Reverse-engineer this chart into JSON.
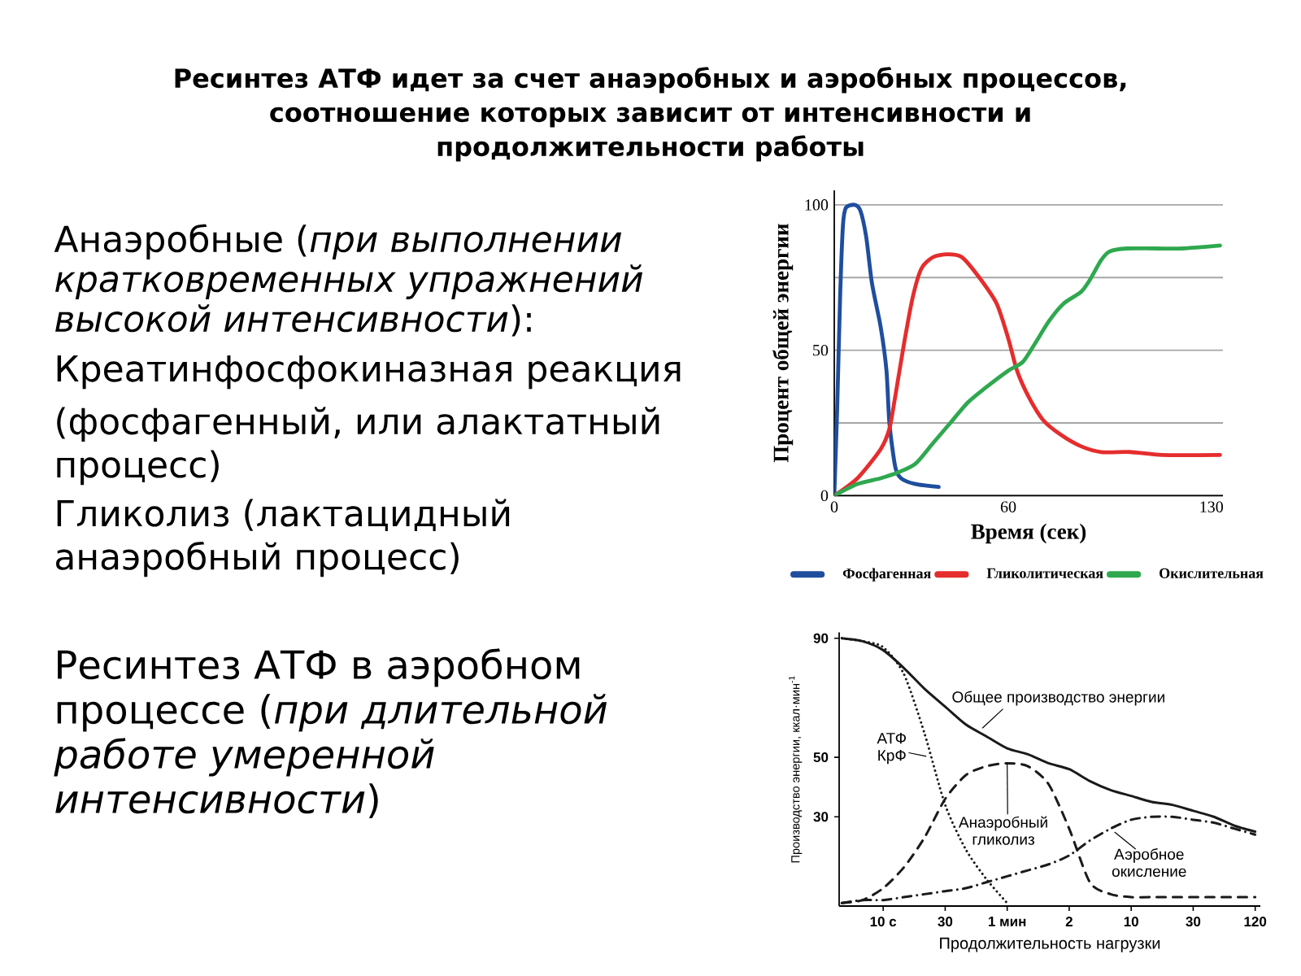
{
  "chart_data": [
    {
      "type": "other",
      "title": "Ресинтез АТФ идет за счет анаэробных и аэробных процессов, соотношение которых зависит от интенсивности и продолжительности работы",
      "annotations": [
        "Анаэробные (*при выполнении кратковременных упражнений высокой интенсивности*):",
        "Креатинфосфокиназная реакция",
        "(фосфагенный, или алактатный процесс)",
        "Гликолиз (лактацидный анаэробный процесс)",
        "Ресинтез АТФ в аэробном процессе (*при длительной работе умеренной интенсивности*)"
      ]
    },
    {
      "type": "line",
      "xlabel": "Время (сек)",
      "ylabel": "Процент общей энергии",
      "xlim": [
        0,
        134
      ],
      "ylim": [
        0,
        105
      ],
      "xticks": [
        0,
        60,
        130
      ],
      "yticks": [
        0,
        {
          "value": 25,
          "label": null
        },
        50,
        {
          "value": 75,
          "label": null
        },
        100
      ],
      "grid": "y",
      "legend": "bottom",
      "series": [
        {
          "name": "Фосфагенная",
          "color": "#1f4e9e",
          "x": [
            0,
            1,
            2,
            3,
            4,
            7,
            9,
            11,
            13,
            16,
            18,
            19,
            21,
            23,
            28,
            36
          ],
          "values": [
            0,
            30,
            68,
            93,
            99,
            100,
            98,
            89,
            73,
            58,
            43,
            25,
            10,
            6,
            4,
            3
          ]
        },
        {
          "name": "Гликолитическая",
          "color": "#e52d2d",
          "x": [
            0,
            8,
            16,
            19,
            21,
            24,
            27,
            30,
            34,
            39,
            44,
            50,
            56,
            60,
            63,
            67,
            72,
            78,
            85,
            92,
            102,
            113,
            133
          ],
          "values": [
            0,
            6,
            16,
            23,
            34,
            52,
            68,
            78,
            82,
            83,
            82,
            75,
            66,
            54,
            43,
            34,
            26,
            21,
            17,
            15,
            15,
            14,
            14
          ]
        },
        {
          "name": "Окислительная",
          "color": "#2fa84f",
          "x": [
            0,
            8,
            16,
            22,
            28,
            34,
            40,
            46,
            52,
            60,
            65,
            69,
            74,
            79,
            85,
            88,
            92,
            95,
            101,
            111,
            120,
            133
          ],
          "values": [
            0,
            4,
            6,
            8,
            11,
            18,
            25,
            32,
            37,
            43,
            46,
            52,
            60,
            66,
            70,
            74,
            81,
            84,
            85,
            85,
            85,
            86
          ]
        }
      ]
    },
    {
      "type": "line",
      "xlabel": "Продолжительность нагрузки",
      "ylabel": "Производство энергии, ккал·мин$^{-1}$",
      "categories": [
        null,
        null,
        "10 с",
        null,
        null,
        "30",
        null,
        null,
        "1 мин",
        null,
        null,
        "2",
        null,
        null,
        "10",
        null,
        null,
        "30",
        null,
        null,
        "120"
      ],
      "ylim": [
        0,
        92
      ],
      "yticks": [
        30,
        50,
        90
      ],
      "series": [
        {
          "color": "#1a1a1a",
          "line_style": "solid",
          "values": [
            90,
            89,
            86,
            80,
            73,
            67,
            61,
            57,
            53,
            51,
            48,
            46,
            42,
            39,
            37,
            35,
            34,
            32,
            30,
            27,
            25
          ]
        },
        {
          "color": "#1a1a1a",
          "line_style": "dotted",
          "values": [
            90,
            89,
            87,
            78,
            58,
            34,
            19,
            9,
            1,
            null,
            null,
            null,
            null,
            null,
            null,
            null,
            null,
            null,
            null,
            null,
            null
          ]
        },
        {
          "color": "#1a1a1a",
          "line_style": "dashed",
          "values": [
            1,
            2,
            6,
            13,
            23,
            36,
            44,
            47,
            48,
            47,
            41,
            26,
            8,
            4,
            3,
            3,
            3,
            3,
            3,
            3,
            3
          ]
        },
        {
          "color": "#1a1a1a",
          "line_style": "dashdot",
          "values": [
            1,
            2,
            2,
            3,
            4,
            5,
            6,
            8,
            10,
            12,
            14,
            17,
            22,
            26,
            29,
            30,
            30,
            29,
            28,
            26,
            24
          ]
        }
      ],
      "annotations": [
        "Общее производство энергии",
        "АТФ КрФ",
        {
          "text": "Анаэробный гликолиз",
          "x": "1 мин",
          "y": 48
        },
        "Аэробное окисление"
      ]
    }
  ]
}
